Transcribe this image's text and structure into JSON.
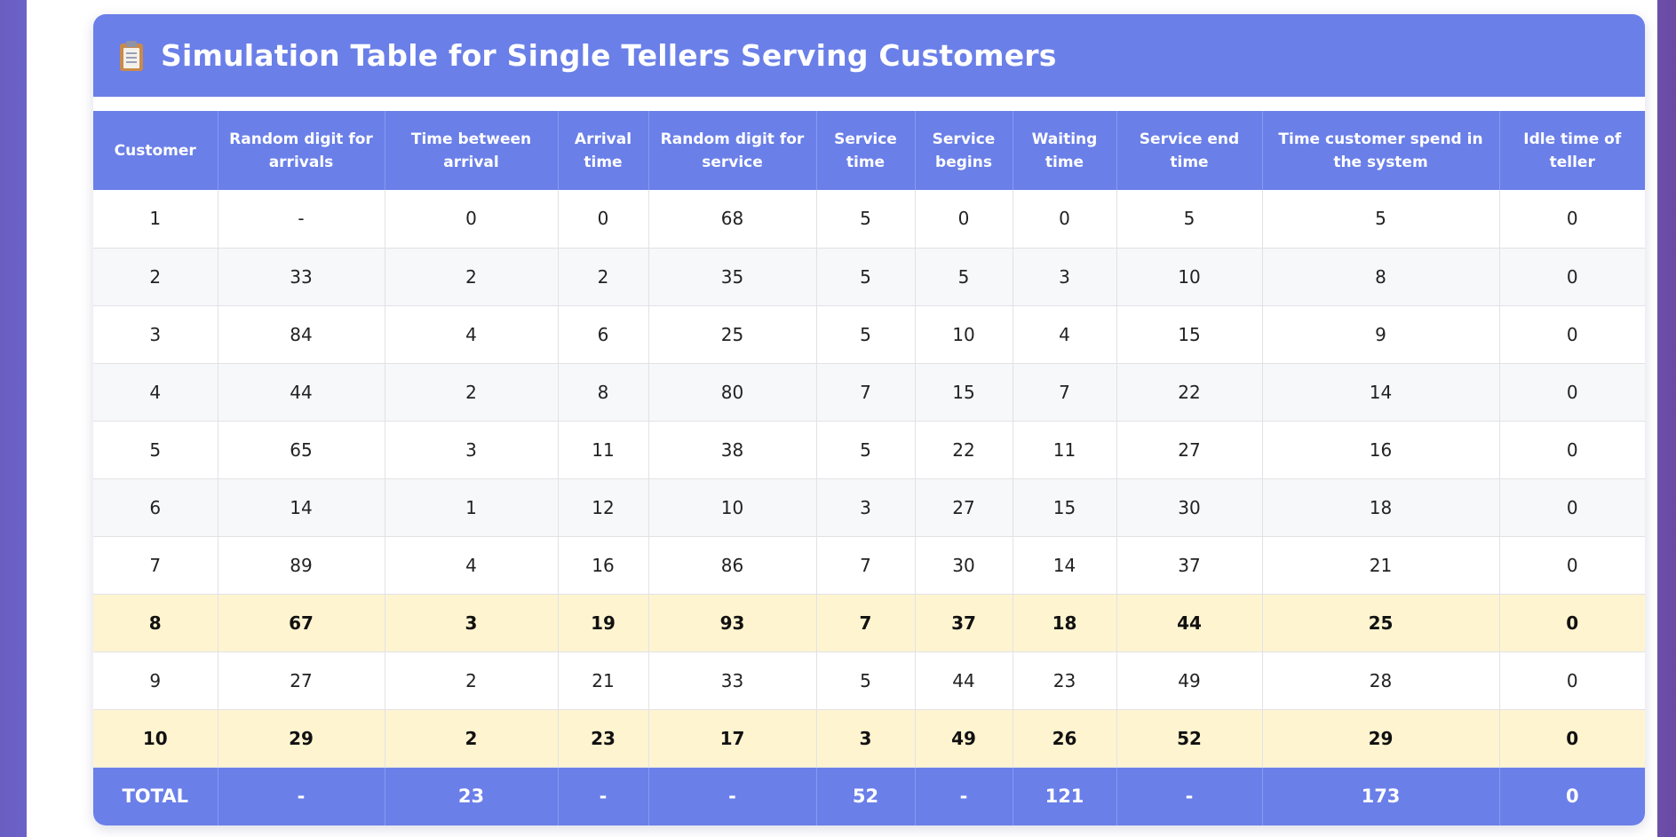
{
  "header": {
    "icon": "clipboard-icon",
    "title": "Simulation Table for Single Tellers Serving Customers"
  },
  "colors": {
    "accent": "#6a7fe8",
    "highlight_row": "#fff4d0"
  },
  "table": {
    "columns": [
      "Customer",
      "Random digit for arrivals",
      "Time between arrival",
      "Arrival time",
      "Random digit for service",
      "Service time",
      "Service begins",
      "Waiting time",
      "Service end time",
      "Time customer spend in the system",
      "Idle time of teller"
    ],
    "rows": [
      [
        "1",
        "-",
        "0",
        "0",
        "68",
        "5",
        "0",
        "0",
        "5",
        "5",
        "0"
      ],
      [
        "2",
        "33",
        "2",
        "2",
        "35",
        "5",
        "5",
        "3",
        "10",
        "8",
        "0"
      ],
      [
        "3",
        "84",
        "4",
        "6",
        "25",
        "5",
        "10",
        "4",
        "15",
        "9",
        "0"
      ],
      [
        "4",
        "44",
        "2",
        "8",
        "80",
        "7",
        "15",
        "7",
        "22",
        "14",
        "0"
      ],
      [
        "5",
        "65",
        "3",
        "11",
        "38",
        "5",
        "22",
        "11",
        "27",
        "16",
        "0"
      ],
      [
        "6",
        "14",
        "1",
        "12",
        "10",
        "3",
        "27",
        "15",
        "30",
        "18",
        "0"
      ],
      [
        "7",
        "89",
        "4",
        "16",
        "86",
        "7",
        "30",
        "14",
        "37",
        "21",
        "0"
      ],
      [
        "8",
        "67",
        "3",
        "19",
        "93",
        "7",
        "37",
        "18",
        "44",
        "25",
        "0"
      ],
      [
        "9",
        "27",
        "2",
        "21",
        "33",
        "5",
        "44",
        "23",
        "49",
        "28",
        "0"
      ],
      [
        "10",
        "29",
        "2",
        "23",
        "17",
        "3",
        "49",
        "26",
        "52",
        "29",
        "0"
      ]
    ],
    "highlighted_rows": [
      8,
      10
    ],
    "total": [
      "TOTAL",
      "-",
      "23",
      "-",
      "-",
      "52",
      "-",
      "121",
      "-",
      "173",
      "0"
    ]
  }
}
